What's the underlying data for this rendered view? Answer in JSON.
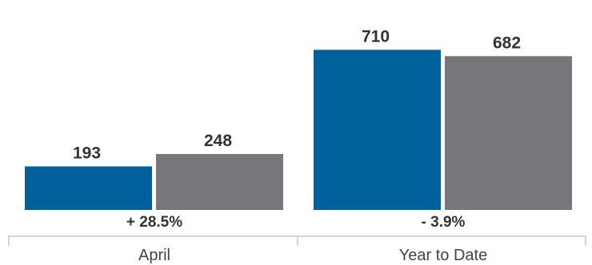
{
  "chart_data": {
    "type": "bar",
    "categories": [
      "April",
      "Year to Date"
    ],
    "series": [
      {
        "values": [
          193,
          710
        ],
        "color": "#00609c"
      },
      {
        "values": [
          248,
          682
        ],
        "color": "#77777b"
      }
    ],
    "changes": [
      "+ 28.5%",
      "- 3.9%"
    ],
    "ylim": [
      0,
      800
    ],
    "grid": false,
    "axis_color": "#bbbbbb"
  }
}
